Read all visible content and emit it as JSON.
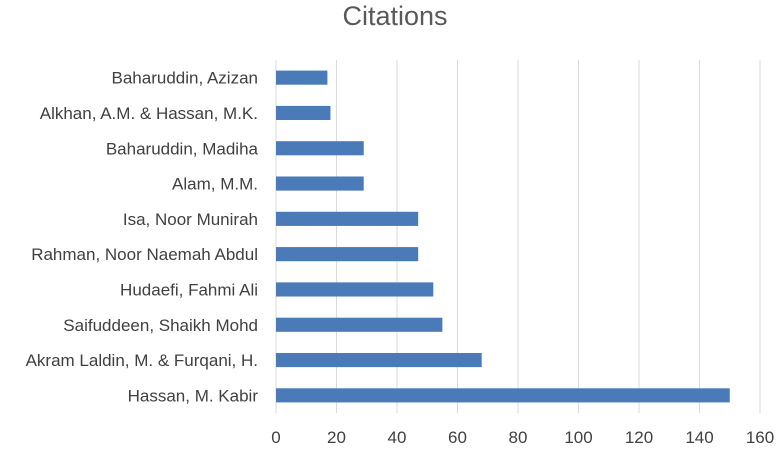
{
  "chart_data": {
    "type": "bar",
    "orientation": "horizontal",
    "title": "Citations",
    "xlabel": "",
    "ylabel": "",
    "categories": [
      "Baharuddin, Azizan",
      "Alkhan, A.M. & Hassan, M.K.",
      "Baharuddin, Madiha",
      "Alam, M.M.",
      "Isa, Noor Munirah",
      "Rahman, Noor Naemah Abdul",
      "Hudaefi, Fahmi Ali",
      "Saifuddeen, Shaikh Mohd",
      "Akram Laldin, M. & Furqani, H.",
      "Hassan, M. Kabir"
    ],
    "values": [
      17,
      18,
      29,
      29,
      47,
      47,
      52,
      55,
      68,
      150
    ],
    "xlim": [
      0,
      160
    ],
    "xticks": [
      0,
      20,
      40,
      60,
      80,
      100,
      120,
      140,
      160
    ],
    "grid": true,
    "legend": "none",
    "bar_color": "#4a7ab8",
    "grid_color": "#d9d9d9"
  }
}
